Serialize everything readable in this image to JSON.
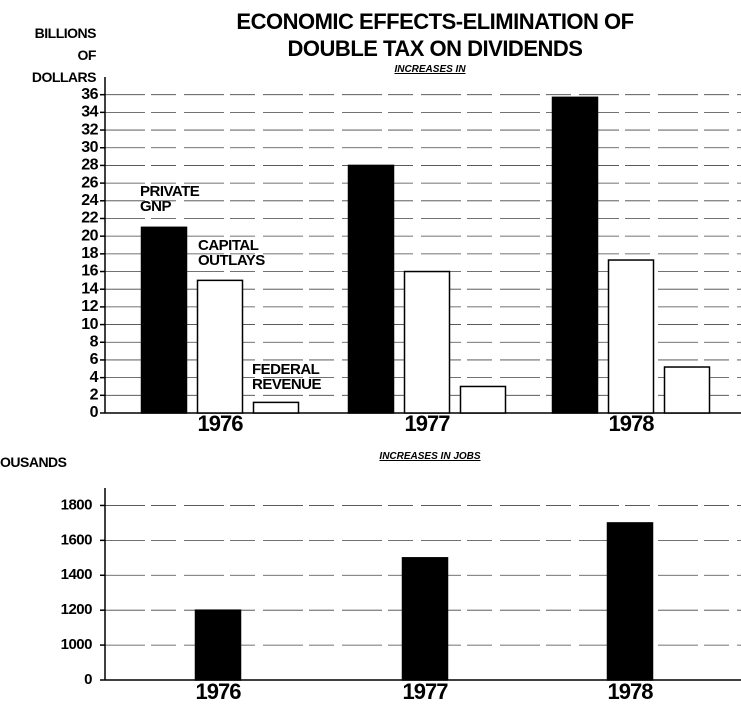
{
  "chart_data": [
    {
      "type": "bar",
      "title": "ECONOMIC EFFECTS-ELIMINATION OF DOUBLE TAX ON DIVIDENDS",
      "subtitle": "INCREASES IN",
      "y_label": "BILLIONS OF DOLLARS",
      "categories": [
        "1976",
        "1977",
        "1978"
      ],
      "series": [
        {
          "name": "PRIVATE GNP",
          "color": "#000000",
          "values": [
            21,
            28,
            35.7
          ]
        },
        {
          "name": "CAPITAL OUTLAYS",
          "color": "#ffffff",
          "values": [
            15,
            16,
            17.3
          ]
        },
        {
          "name": "FEDERAL REVENUE",
          "color": "#ffffff",
          "values": [
            1.2,
            3,
            5.2
          ]
        }
      ],
      "ylim": [
        0,
        38
      ],
      "yticks": [
        0,
        2,
        4,
        6,
        8,
        10,
        12,
        14,
        16,
        18,
        20,
        22,
        24,
        26,
        28,
        30,
        32,
        34,
        36
      ],
      "grid": true
    },
    {
      "type": "bar",
      "subtitle": "INCREASES IN JOBS",
      "y_label": "OUSANDS",
      "categories": [
        "1976",
        "1977",
        "1978"
      ],
      "values": [
        1200,
        1500,
        1700
      ],
      "color": "#000000",
      "ylim": [
        0,
        1900
      ],
      "yticks": [
        0,
        1000,
        1200,
        1400,
        1600,
        1800
      ],
      "axis_break": [
        0,
        1000
      ],
      "grid": true
    }
  ]
}
